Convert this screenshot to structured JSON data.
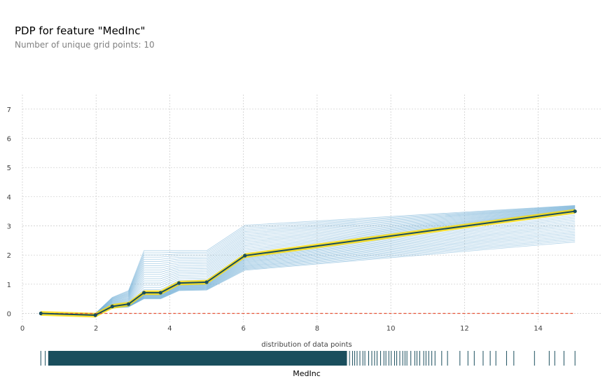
{
  "title": "PDP for feature \"MedInc\"",
  "subtitle": "Number of unique grid points: 10",
  "colors": {
    "pdp_line": "#1A4E5D",
    "pdp_band": "#FEDC00",
    "ice_lines": "#68A9D4",
    "zero_line": "#E75438",
    "rug": "#1A4E5D",
    "grid": "#C8C8C8"
  },
  "chart_data": {
    "type": "line",
    "xlim": [
      0,
      15.7
    ],
    "ylim": [
      -0.3,
      7.5
    ],
    "xticks": [
      0,
      2,
      4,
      6,
      8,
      10,
      12,
      14
    ],
    "yticks": [
      0,
      1,
      2,
      3,
      4,
      5,
      6,
      7
    ],
    "grid": true,
    "x": [
      0.5,
      1.98,
      2.44,
      2.88,
      3.3,
      3.75,
      4.25,
      5.0,
      6.04,
      15.0
    ],
    "series": [
      {
        "values": [
          0.0,
          -0.06,
          0.24,
          0.32,
          0.71,
          0.71,
          1.04,
          1.07,
          1.98,
          3.5
        ]
      }
    ],
    "band_width": 0.08,
    "ice_envelope": {
      "upper": [
        0.0,
        0.0,
        0.55,
        0.78,
        2.15,
        2.15,
        2.15,
        2.15,
        3.02,
        3.7
      ],
      "lower": [
        0.0,
        -0.05,
        0.18,
        0.22,
        0.5,
        0.5,
        0.78,
        0.8,
        1.48,
        2.45
      ]
    },
    "rug_label": "distribution of data points",
    "rug_range": [
      0.5,
      15.0
    ],
    "xlabel": "MedInc"
  }
}
